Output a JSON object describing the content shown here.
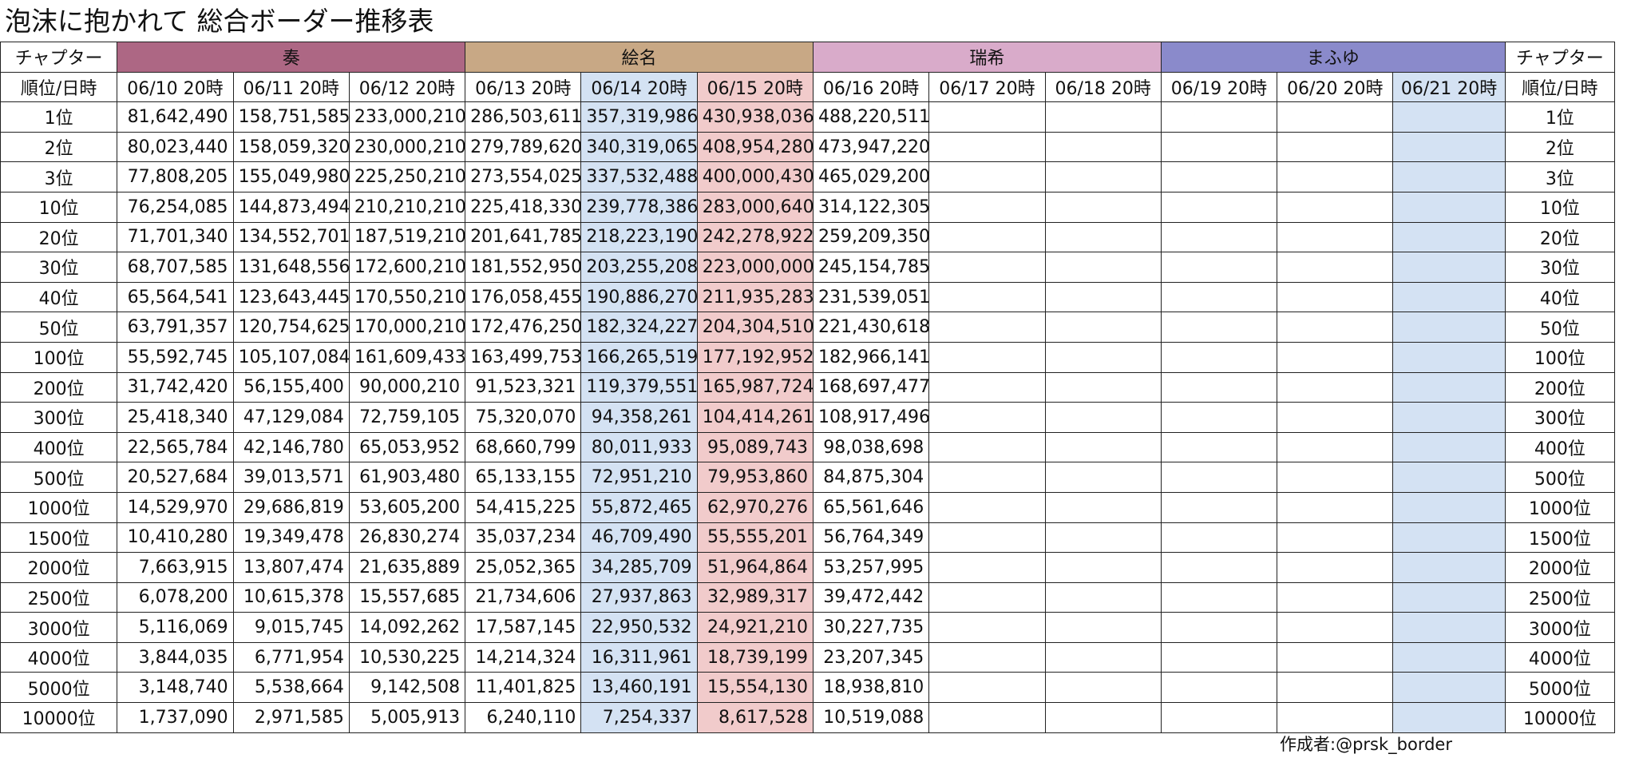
{
  "title": "泡沫に抱かれて 総合ボーダー推移表",
  "credit": "作成者:@prsk_border",
  "header": {
    "chapter_label": "チャプター",
    "rank_date_label": "順位/日時",
    "groups": [
      {
        "label": "奏",
        "span": 3,
        "color": "#ad6784"
      },
      {
        "label": "絵名",
        "span": 3,
        "color": "#c8a885"
      },
      {
        "label": "瑞希",
        "span": 3,
        "color": "#d9abca"
      },
      {
        "label": "まふゆ",
        "span": 3,
        "color": "#8a8acb"
      }
    ],
    "dates": [
      "06/10 20時",
      "06/11 20時",
      "06/12 20時",
      "06/13 20時",
      "06/14 20時",
      "06/15 20時",
      "06/16 20時",
      "06/17 20時",
      "06/18 20時",
      "06/19 20時",
      "06/20 20時",
      "06/21 20時"
    ]
  },
  "highlight": {
    "blue_columns": [
      4,
      11
    ],
    "pink_columns": [
      5
    ],
    "blue": "#d4e2f3",
    "pink": "#f1cbcb"
  },
  "rows": [
    {
      "rank": "1位",
      "values": [
        "81,642,490",
        "158,751,585",
        "233,000,210",
        "286,503,611",
        "357,319,986",
        "430,938,036",
        "488,220,511",
        "",
        "",
        "",
        "",
        ""
      ]
    },
    {
      "rank": "2位",
      "values": [
        "80,023,440",
        "158,059,320",
        "230,000,210",
        "279,789,620",
        "340,319,065",
        "408,954,280",
        "473,947,220",
        "",
        "",
        "",
        "",
        ""
      ]
    },
    {
      "rank": "3位",
      "values": [
        "77,808,205",
        "155,049,980",
        "225,250,210",
        "273,554,025",
        "337,532,488",
        "400,000,430",
        "465,029,200",
        "",
        "",
        "",
        "",
        ""
      ]
    },
    {
      "rank": "10位",
      "values": [
        "76,254,085",
        "144,873,494",
        "210,210,210",
        "225,418,330",
        "239,778,386",
        "283,000,640",
        "314,122,305",
        "",
        "",
        "",
        "",
        ""
      ]
    },
    {
      "rank": "20位",
      "values": [
        "71,701,340",
        "134,552,701",
        "187,519,210",
        "201,641,785",
        "218,223,190",
        "242,278,922",
        "259,209,350",
        "",
        "",
        "",
        "",
        ""
      ]
    },
    {
      "rank": "30位",
      "values": [
        "68,707,585",
        "131,648,556",
        "172,600,210",
        "181,552,950",
        "203,255,208",
        "223,000,000",
        "245,154,785",
        "",
        "",
        "",
        "",
        ""
      ]
    },
    {
      "rank": "40位",
      "values": [
        "65,564,541",
        "123,643,445",
        "170,550,210",
        "176,058,455",
        "190,886,270",
        "211,935,283",
        "231,539,051",
        "",
        "",
        "",
        "",
        ""
      ]
    },
    {
      "rank": "50位",
      "values": [
        "63,791,357",
        "120,754,625",
        "170,000,210",
        "172,476,250",
        "182,324,227",
        "204,304,510",
        "221,430,618",
        "",
        "",
        "",
        "",
        ""
      ]
    },
    {
      "rank": "100位",
      "values": [
        "55,592,745",
        "105,107,084",
        "161,609,433",
        "163,499,753",
        "166,265,519",
        "177,192,952",
        "182,966,141",
        "",
        "",
        "",
        "",
        ""
      ]
    },
    {
      "rank": "200位",
      "values": [
        "31,742,420",
        "56,155,400",
        "90,000,210",
        "91,523,321",
        "119,379,551",
        "165,987,724",
        "168,697,477",
        "",
        "",
        "",
        "",
        ""
      ]
    },
    {
      "rank": "300位",
      "values": [
        "25,418,340",
        "47,129,084",
        "72,759,105",
        "75,320,070",
        "94,358,261",
        "104,414,261",
        "108,917,496",
        "",
        "",
        "",
        "",
        ""
      ]
    },
    {
      "rank": "400位",
      "values": [
        "22,565,784",
        "42,146,780",
        "65,053,952",
        "68,660,799",
        "80,011,933",
        "95,089,743",
        "98,038,698",
        "",
        "",
        "",
        "",
        ""
      ]
    },
    {
      "rank": "500位",
      "values": [
        "20,527,684",
        "39,013,571",
        "61,903,480",
        "65,133,155",
        "72,951,210",
        "79,953,860",
        "84,875,304",
        "",
        "",
        "",
        "",
        ""
      ]
    },
    {
      "rank": "1000位",
      "values": [
        "14,529,970",
        "29,686,819",
        "53,605,200",
        "54,415,225",
        "55,872,465",
        "62,970,276",
        "65,561,646",
        "",
        "",
        "",
        "",
        ""
      ]
    },
    {
      "rank": "1500位",
      "values": [
        "10,410,280",
        "19,349,478",
        "26,830,274",
        "35,037,234",
        "46,709,490",
        "55,555,201",
        "56,764,349",
        "",
        "",
        "",
        "",
        ""
      ]
    },
    {
      "rank": "2000位",
      "values": [
        "7,663,915",
        "13,807,474",
        "21,635,889",
        "25,052,365",
        "34,285,709",
        "51,964,864",
        "53,257,995",
        "",
        "",
        "",
        "",
        ""
      ]
    },
    {
      "rank": "2500位",
      "values": [
        "6,078,200",
        "10,615,378",
        "15,557,685",
        "21,734,606",
        "27,937,863",
        "32,989,317",
        "39,472,442",
        "",
        "",
        "",
        "",
        ""
      ]
    },
    {
      "rank": "3000位",
      "values": [
        "5,116,069",
        "9,015,745",
        "14,092,262",
        "17,587,145",
        "22,950,532",
        "24,921,210",
        "30,227,735",
        "",
        "",
        "",
        "",
        ""
      ]
    },
    {
      "rank": "4000位",
      "values": [
        "3,844,035",
        "6,771,954",
        "10,530,225",
        "14,214,324",
        "16,311,961",
        "18,739,199",
        "23,207,345",
        "",
        "",
        "",
        "",
        ""
      ]
    },
    {
      "rank": "5000位",
      "values": [
        "3,148,740",
        "5,538,664",
        "9,142,508",
        "11,401,825",
        "13,460,191",
        "15,554,130",
        "18,938,810",
        "",
        "",
        "",
        "",
        ""
      ]
    },
    {
      "rank": "10000位",
      "values": [
        "1,737,090",
        "2,971,585",
        "5,005,913",
        "6,240,110",
        "7,254,337",
        "8,617,528",
        "10,519,088",
        "",
        "",
        "",
        "",
        ""
      ]
    }
  ]
}
